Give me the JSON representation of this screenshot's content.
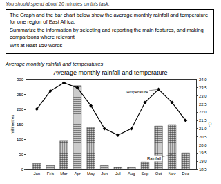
{
  "header": {
    "instruction": "You should spend about 20 minutes on this task.",
    "task": [
      "The Graph and the bar chart below show the average monthly rainfall and temperature for one region of East Africa.",
      "Summarize the information by selecting and reporting the main features, and making comparisons where relevant",
      "Writ at least 150 words"
    ],
    "caption": "Average monthly rainfall and temperatures"
  },
  "chart_data": {
    "type": "bar",
    "title": "Average monthly rainfall and temperature",
    "categories": [
      "Jan",
      "Feb",
      "Mar",
      "Apr",
      "May",
      "Jun",
      "Jul",
      "Aug",
      "Sep",
      "Oct",
      "Nov",
      "Dec"
    ],
    "series": [
      {
        "name": "Rainfall",
        "type": "bar",
        "color": "#5a5a5a",
        "values": [
          20,
          15,
          95,
          280,
          140,
          15,
          8,
          8,
          25,
          145,
          150,
          55
        ]
      },
      {
        "name": "Temperature",
        "type": "line",
        "color": "#000000",
        "marker": "diamond",
        "axis": "y2",
        "values": [
          22.2,
          23.3,
          23.8,
          23.5,
          22.4,
          21.0,
          20.6,
          21.0,
          22.6,
          23.4,
          22.6,
          21.5
        ]
      }
    ],
    "y_label": "millimetres",
    "y2_label": "°C",
    "ylim": [
      0,
      300
    ],
    "yticks": [
      0,
      50,
      100,
      150,
      200,
      250,
      300
    ],
    "y2lim": [
      18.5,
      24
    ],
    "y2ticks": [
      18.5,
      {
        "value": 19,
        "label": "19.0"
      },
      19.5,
      {
        "value": 20,
        "label": "20.0"
      },
      20.5,
      {
        "value": 21,
        "label": "21.0"
      },
      21.5,
      {
        "value": 22,
        "label": "22.0"
      },
      22.5,
      {
        "value": 23,
        "label": "23.0"
      },
      23.5,
      {
        "value": 24,
        "label": "24.0"
      }
    ]
  }
}
